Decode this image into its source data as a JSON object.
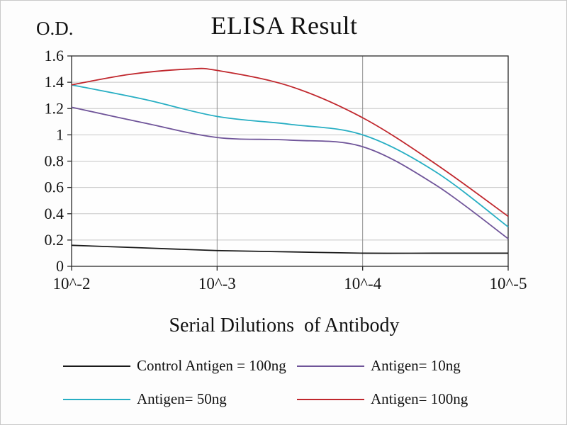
{
  "chart_data": {
    "type": "line",
    "title": "ELISA Result",
    "ylabel": "O.D.",
    "xlabel": "Serial Dilutions  of Antibody",
    "x_tick_labels": [
      "10^-2",
      "10^-3",
      "10^-4",
      "10^-5"
    ],
    "y_ticks": [
      0,
      0.2,
      0.4,
      0.6,
      0.8,
      1,
      1.2,
      1.4,
      1.6
    ],
    "ylim": [
      0,
      1.6
    ],
    "grid": true,
    "legend_position": "bottom",
    "series": [
      {
        "name": "Control Antigen = 100ng",
        "color": "#1a1a1a",
        "x": [
          0,
          0.5,
          1,
          1.5,
          2,
          2.5,
          3
        ],
        "values": [
          0.16,
          0.14,
          0.12,
          0.11,
          0.1,
          0.1,
          0.1
        ]
      },
      {
        "name": "Antigen= 10ng",
        "color": "#6f5499",
        "x": [
          0,
          0.5,
          1,
          1.5,
          2,
          2.5,
          3
        ],
        "values": [
          1.21,
          1.09,
          0.98,
          0.96,
          0.91,
          0.62,
          0.21
        ]
      },
      {
        "name": "Antigen= 50ng",
        "color": "#27aec3",
        "x": [
          0,
          0.5,
          1,
          1.5,
          2,
          2.5,
          3
        ],
        "values": [
          1.38,
          1.27,
          1.14,
          1.08,
          1.0,
          0.72,
          0.3
        ]
      },
      {
        "name": "Antigen= 100ng",
        "color": "#c0272d",
        "x": [
          0,
          0.4,
          0.8,
          1,
          1.5,
          2,
          2.5,
          3
        ],
        "values": [
          1.38,
          1.46,
          1.5,
          1.49,
          1.37,
          1.13,
          0.78,
          0.38
        ]
      }
    ]
  }
}
